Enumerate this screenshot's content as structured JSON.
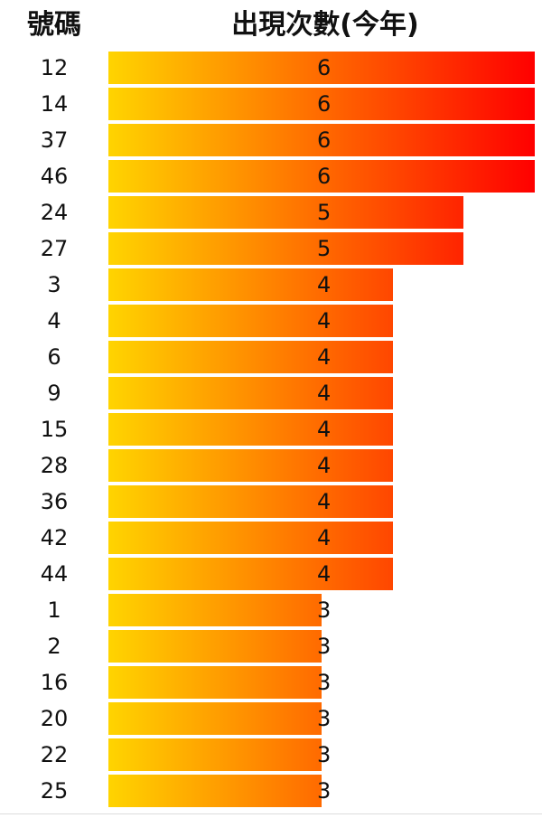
{
  "header": {
    "number_label": "號碼",
    "count_label": "出現次數(今年)"
  },
  "colors": {
    "bar_gradient_start": "#ffd400",
    "bar_gradient_end": "#ff0000",
    "text": "#111111"
  },
  "chart_data": {
    "type": "bar",
    "orientation": "horizontal",
    "categories": [
      "12",
      "14",
      "37",
      "46",
      "24",
      "27",
      "3",
      "4",
      "6",
      "9",
      "15",
      "28",
      "36",
      "42",
      "44",
      "1",
      "2",
      "16",
      "20",
      "22",
      "25"
    ],
    "values": [
      6,
      6,
      6,
      6,
      5,
      5,
      4,
      4,
      4,
      4,
      4,
      4,
      4,
      4,
      4,
      3,
      3,
      3,
      3,
      3,
      3
    ],
    "xlim": [
      0,
      6
    ],
    "grid": false,
    "legend": "none"
  }
}
